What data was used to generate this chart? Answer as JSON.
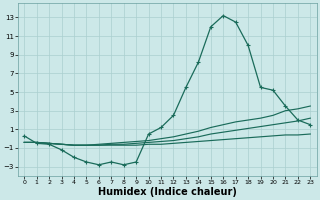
{
  "bg_color": "#cce8e8",
  "grid_color": "#aacfcf",
  "line_color": "#1a6b5a",
  "xlabel": "Humidex (Indice chaleur)",
  "xlabel_fontsize": 7,
  "yticks": [
    -3,
    -1,
    1,
    3,
    5,
    7,
    9,
    11,
    13
  ],
  "xticks": [
    0,
    1,
    2,
    3,
    4,
    5,
    6,
    7,
    8,
    9,
    10,
    11,
    12,
    13,
    14,
    15,
    16,
    17,
    18,
    19,
    20,
    21,
    22,
    23
  ],
  "xlim": [
    -0.5,
    23.5
  ],
  "ylim": [
    -4.0,
    14.5
  ],
  "c1_y": [
    0.3,
    -0.5,
    -0.6,
    -1.2,
    -2.0,
    -2.5,
    -2.8,
    -2.5,
    -2.8,
    -2.5,
    0.5,
    1.2,
    2.5,
    5.5,
    8.2,
    12.0,
    13.2,
    12.5,
    10.0,
    5.5,
    5.2,
    3.5,
    2.0,
    1.5
  ],
  "c2_y": [
    -0.4,
    -0.4,
    -0.5,
    -0.6,
    -0.7,
    -0.7,
    -0.6,
    -0.5,
    -0.4,
    -0.3,
    -0.2,
    0.0,
    0.2,
    0.5,
    0.8,
    1.2,
    1.5,
    1.8,
    2.0,
    2.2,
    2.5,
    3.0,
    3.2,
    3.5
  ],
  "c3_y": [
    -0.4,
    -0.4,
    -0.5,
    -0.6,
    -0.7,
    -0.7,
    -0.7,
    -0.6,
    -0.6,
    -0.5,
    -0.4,
    -0.3,
    -0.2,
    0.0,
    0.2,
    0.5,
    0.7,
    0.9,
    1.1,
    1.3,
    1.5,
    1.7,
    1.9,
    2.2
  ],
  "c4_y": [
    -0.4,
    -0.4,
    -0.5,
    -0.6,
    -0.7,
    -0.7,
    -0.7,
    -0.7,
    -0.7,
    -0.7,
    -0.6,
    -0.6,
    -0.5,
    -0.4,
    -0.3,
    -0.2,
    -0.1,
    0.0,
    0.1,
    0.2,
    0.3,
    0.4,
    0.4,
    0.5
  ]
}
